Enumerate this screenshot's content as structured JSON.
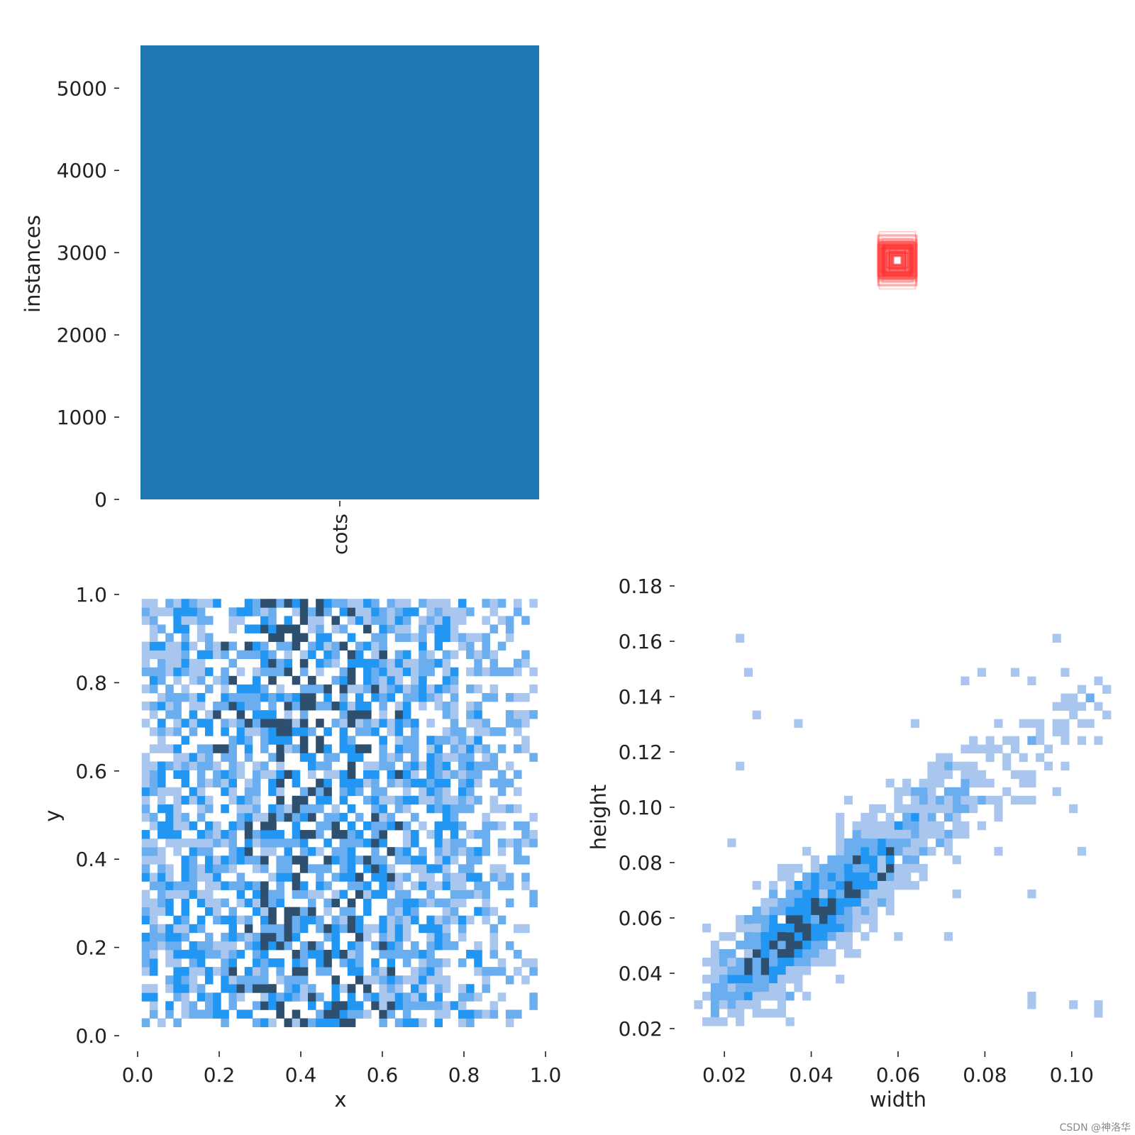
{
  "colors": {
    "bar": "#1f77b4",
    "hist_light": "#a8c6ee",
    "hist_mid": "#6aaef0",
    "hist_bright": "#2196f3",
    "hist_dark": "#2f4f6f",
    "box": "#ff3333"
  },
  "watermark": "CSDN @神洛华",
  "chart_data": [
    {
      "type": "bar",
      "categories": [
        "cots"
      ],
      "values": [
        5520
      ],
      "xlabel": "",
      "ylabel": "instances",
      "ylim": [
        0,
        5520
      ],
      "yticks": [
        "0",
        "1000",
        "2000",
        "3000",
        "4000",
        "5000"
      ],
      "grid": false
    },
    {
      "type": "boxes",
      "description_free": true,
      "center": [
        0.5,
        0.5
      ],
      "widths_range": [
        0.02,
        0.11
      ],
      "heights_range": [
        0.02,
        0.17
      ]
    },
    {
      "type": "heatmap",
      "xlabel": "x",
      "ylabel": "y",
      "xlim": [
        0.0,
        1.0
      ],
      "ylim": [
        0.0,
        1.0
      ],
      "xticks": [
        "0.0",
        "0.2",
        "0.4",
        "0.6",
        "0.8",
        "1.0"
      ],
      "yticks": [
        "0.0",
        "0.2",
        "0.4",
        "0.6",
        "0.8",
        "1.0"
      ],
      "bins": [
        50,
        50
      ],
      "x_range": [
        0.01,
        0.98
      ],
      "y_range": [
        0.02,
        0.99
      ]
    },
    {
      "type": "heatmap",
      "xlabel": "width",
      "ylabel": "height",
      "xlim": [
        0.01,
        0.11
      ],
      "ylim": [
        0.02,
        0.18
      ],
      "xticks": [
        "0.02",
        "0.04",
        "0.06",
        "0.08",
        "0.10"
      ],
      "yticks": [
        "0.02",
        "0.04",
        "0.06",
        "0.08",
        "0.10",
        "0.12",
        "0.14",
        "0.16",
        "0.18"
      ],
      "bins": [
        50,
        50
      ],
      "correlation": "positive",
      "dense_region": {
        "width": [
          0.02,
          0.035
        ],
        "height": [
          0.03,
          0.055
        ]
      }
    }
  ]
}
